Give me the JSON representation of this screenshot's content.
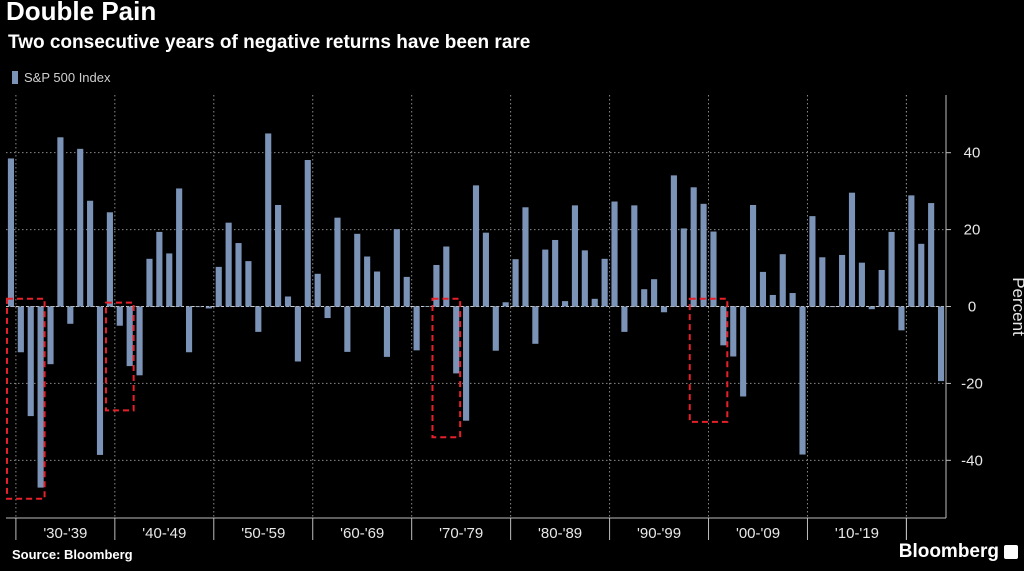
{
  "header": {
    "title": "Double Pain",
    "subtitle": "Two consecutive years of negative returns have been rare"
  },
  "footer": {
    "source": "Source: Bloomberg",
    "brand": "Bloomberg"
  },
  "colors": {
    "bar": "#7b93b6",
    "highlight": "#e8202a",
    "grid": "#8a8a8a"
  },
  "chart_data": {
    "type": "bar",
    "title": "Double Pain",
    "subtitle": "Two consecutive years of negative returns have been rare",
    "ylabel": "Percent",
    "xlabel": "",
    "ylim": [
      -55,
      55
    ],
    "yticks": [
      -40,
      -20,
      0,
      20,
      40
    ],
    "legend": "top-left",
    "series": [
      {
        "name": "S&P 500 Index",
        "start_year": 1929,
        "values": [
          38.5,
          -11.9,
          -28.5,
          -47.1,
          -15,
          44,
          -4.5,
          41,
          27.5,
          -38.6,
          24.5,
          -5,
          -15.5,
          -17.9,
          12.4,
          19.4,
          13.8,
          30.7,
          -11.9,
          0,
          -0.5,
          10.3,
          21.8,
          16.5,
          11.8,
          -6.6,
          45,
          26.4,
          2.6,
          -14.3,
          38.1,
          8.5,
          -3,
          23.1,
          -11.8,
          18.9,
          13,
          9.1,
          -13.1,
          20.1,
          7.7,
          -11.4,
          0.1,
          10.8,
          15.6,
          -17.4,
          -29.7,
          31.5,
          19.2,
          -11.5,
          1.1,
          12.3,
          25.8,
          -9.7,
          14.8,
          17.3,
          1.4,
          26.3,
          14.6,
          2,
          12.4,
          27.3,
          -6.6,
          26.3,
          4.5,
          7.1,
          -1.5,
          34.1,
          20.3,
          31,
          26.7,
          19.5,
          -10.1,
          -13,
          -23.4,
          26.4,
          9,
          3,
          13.6,
          3.5,
          -38.5,
          23.5,
          12.8,
          0,
          13.4,
          29.6,
          11.4,
          -0.7,
          9.5,
          19.4,
          -6.2,
          28.9,
          16.3,
          26.9,
          -19.4
        ]
      }
    ],
    "decades": [
      {
        "label": "'30-'39",
        "start_year": 1930
      },
      {
        "label": "'40-'49",
        "start_year": 1940
      },
      {
        "label": "'50-'59",
        "start_year": 1950
      },
      {
        "label": "'60-'69",
        "start_year": 1960
      },
      {
        "label": "'70-'79",
        "start_year": 1970
      },
      {
        "label": "'80-'89",
        "start_year": 1980
      },
      {
        "label": "'90-'99",
        "start_year": 1990
      },
      {
        "label": "'00-'09",
        "start_year": 2000
      },
      {
        "label": "'10-'19",
        "start_year": 2010
      }
    ],
    "highlights": [
      {
        "from_year": 1929,
        "to_year": 1932,
        "ymin": -50,
        "ymax": 2
      },
      {
        "from_year": 1939,
        "to_year": 1941,
        "ymin": -27,
        "ymax": 1
      },
      {
        "from_year": 1972,
        "to_year": 1974,
        "ymin": -34,
        "ymax": 2
      },
      {
        "from_year": 1998,
        "to_year": 2001,
        "ymin": -30,
        "ymax": 2
      }
    ]
  }
}
